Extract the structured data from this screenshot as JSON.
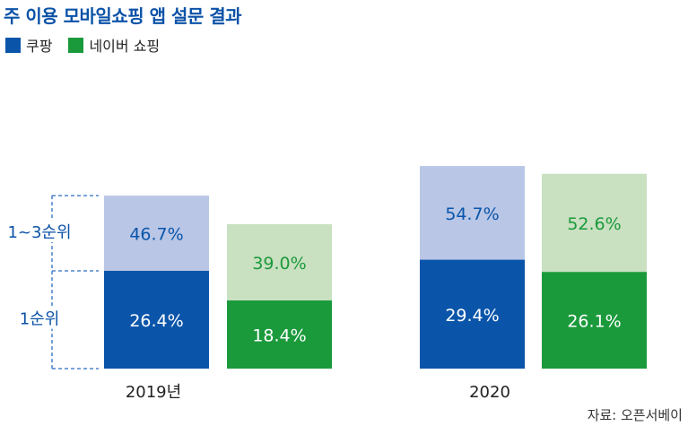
{
  "chart_data": {
    "type": "bar",
    "stacked": true,
    "title": "주 이용 모바일쇼핑 앱 설문 결과",
    "categories": [
      "2019년",
      "2020"
    ],
    "series": [
      {
        "name": "쿠팡",
        "colors": {
          "first": "#0a55aa",
          "rank": "#b9c6e6"
        },
        "segments": [
          {
            "label": "1순위",
            "values": [
              26.4,
              29.4
            ]
          },
          {
            "label": "1~3순위",
            "values": [
              46.7,
              54.7
            ]
          }
        ]
      },
      {
        "name": "네이버 쇼핑",
        "colors": {
          "first": "#1b9a3c",
          "rank": "#c9e0c1"
        },
        "segments": [
          {
            "label": "1순위",
            "values": [
              18.4,
              26.1
            ]
          },
          {
            "label": "1~3순위",
            "values": [
              39.0,
              52.6
            ]
          }
        ]
      }
    ],
    "value_labels": [
      [
        "26.4%",
        "46.7%",
        "18.4%",
        "39.0%"
      ],
      [
        "29.4%",
        "54.7%",
        "26.1%",
        "52.6%"
      ]
    ],
    "bracket_labels": {
      "top": "1~3순위",
      "bottom": "1순위"
    },
    "legend": {
      "placement": "top-left"
    },
    "grid": false
  },
  "source": "자료: 오픈서베이"
}
